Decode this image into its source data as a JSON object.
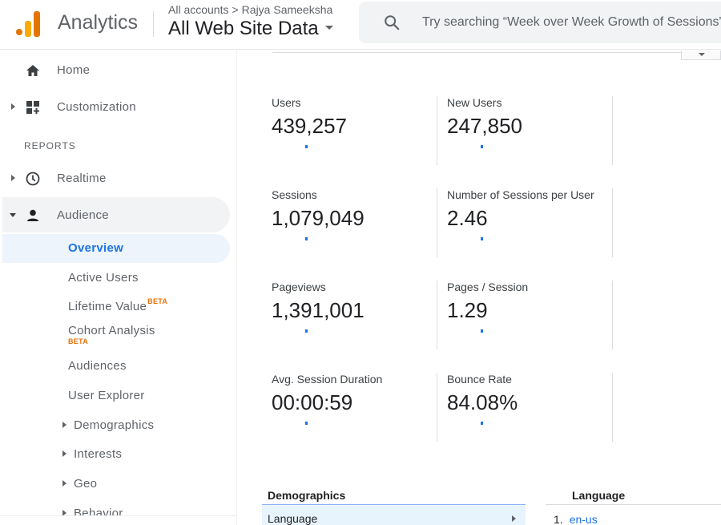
{
  "header": {
    "app_title": "Analytics",
    "breadcrumb": [
      "All accounts",
      "Rajya Sameeksha"
    ],
    "breadcrumb_sep": ">",
    "property_name": "All Web Site Data",
    "search_placeholder": "Try searching “Week over Week Growth of Sessions”"
  },
  "sidebar": {
    "items": [
      {
        "label": "Home",
        "icon": "home-icon"
      },
      {
        "label": "Customization",
        "icon": "customization-icon"
      }
    ],
    "reports_label": "REPORTS",
    "report_items": [
      {
        "label": "Realtime",
        "icon": "clock-icon"
      },
      {
        "label": "Audience",
        "icon": "person-icon"
      }
    ],
    "audience_sub": {
      "overview": "Overview",
      "active_users": "Active Users",
      "lifetime_value": "Lifetime Value",
      "cohort_analysis": "Cohort Analysis",
      "beta": "BETA",
      "audiences": "Audiences",
      "user_explorer": "User Explorer",
      "demographics": "Demographics",
      "interests": "Interests",
      "geo": "Geo",
      "behavior": "Behavior"
    }
  },
  "metrics": [
    {
      "label": "Users",
      "value": "439,257"
    },
    {
      "label": "New Users",
      "value": "247,850"
    },
    {
      "label": "Sessions",
      "value": "1,079,049"
    },
    {
      "label": "Number of Sessions per User",
      "value": "2.46"
    },
    {
      "label": "Pageviews",
      "value": "1,391,001"
    },
    {
      "label": "Pages / Session",
      "value": "1.29"
    },
    {
      "label": "Avg. Session Duration",
      "value": "00:00:59"
    },
    {
      "label": "Bounce Rate",
      "value": "84.08%"
    }
  ],
  "demographics": {
    "title": "Demographics",
    "selected_row": "Language"
  },
  "language": {
    "title": "Language",
    "rows": [
      {
        "rank": "1.",
        "value": "en-us"
      }
    ]
  },
  "colors": {
    "accent": "#1a73e8",
    "beta": "#e8710a",
    "logo_dark": "#e37400",
    "logo_light": "#f9ab00"
  }
}
